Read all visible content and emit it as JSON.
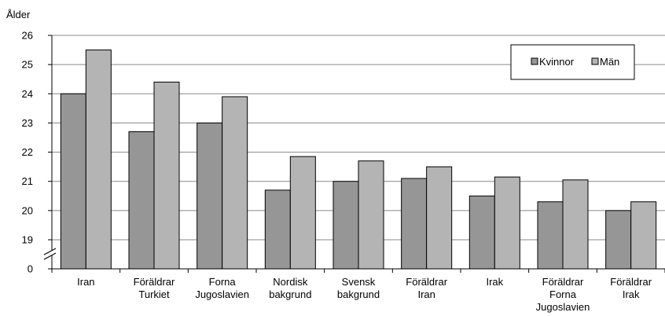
{
  "chart_data": {
    "type": "bar",
    "ylabel": "Ålder",
    "xlabel": "",
    "title": "",
    "ylim": [
      18,
      26
    ],
    "axis_break": true,
    "ytick_labels": [
      "0",
      "19",
      "20",
      "21",
      "22",
      "23",
      "24",
      "25",
      "26"
    ],
    "grid": true,
    "legend_position": "top-right",
    "categories": [
      [
        "Iran"
      ],
      [
        "Föräldrar",
        "Turkiet"
      ],
      [
        "Forna",
        "Jugoslavien"
      ],
      [
        "Nordisk",
        "bakgrund"
      ],
      [
        "Svensk",
        "bakgrund"
      ],
      [
        "Föräldrar",
        "Iran"
      ],
      [
        "Irak"
      ],
      [
        "Föräldrar",
        "Forna",
        "Jugoslavien"
      ],
      [
        "Föräldrar",
        "Irak"
      ]
    ],
    "series": [
      {
        "name": "Kvinnor",
        "color": "#969696",
        "values": [
          24.0,
          22.7,
          23.0,
          20.7,
          21.0,
          21.1,
          20.5,
          20.3,
          20.0
        ]
      },
      {
        "name": "Män",
        "color": "#b4b4b4",
        "values": [
          25.5,
          24.4,
          23.9,
          21.85,
          21.7,
          21.5,
          21.15,
          21.05,
          20.3
        ]
      }
    ]
  }
}
